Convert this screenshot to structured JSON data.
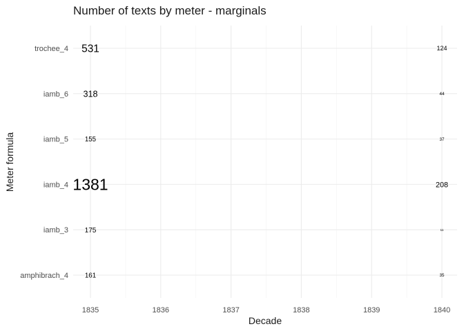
{
  "chart_data": {
    "type": "text-scatter",
    "title": "Number of texts by meter - marginals",
    "xlabel": "Decade",
    "ylabel": "Meter formula",
    "x": [
      1835,
      1840
    ],
    "x_ticks": [
      "1835",
      "1836",
      "1837",
      "1838",
      "1839",
      "1840"
    ],
    "xlim": [
      1835,
      1840
    ],
    "categories": [
      "amphibrach_4",
      "iamb_3",
      "iamb_4",
      "iamb_5",
      "iamb_6",
      "trochee_4"
    ],
    "series": [
      {
        "x": 1835,
        "values": [
          161,
          175,
          1381,
          155,
          318,
          531
        ]
      },
      {
        "x": 1840,
        "values": [
          35,
          11,
          208,
          37,
          44,
          124
        ]
      }
    ],
    "grid": true,
    "legend": "none"
  }
}
